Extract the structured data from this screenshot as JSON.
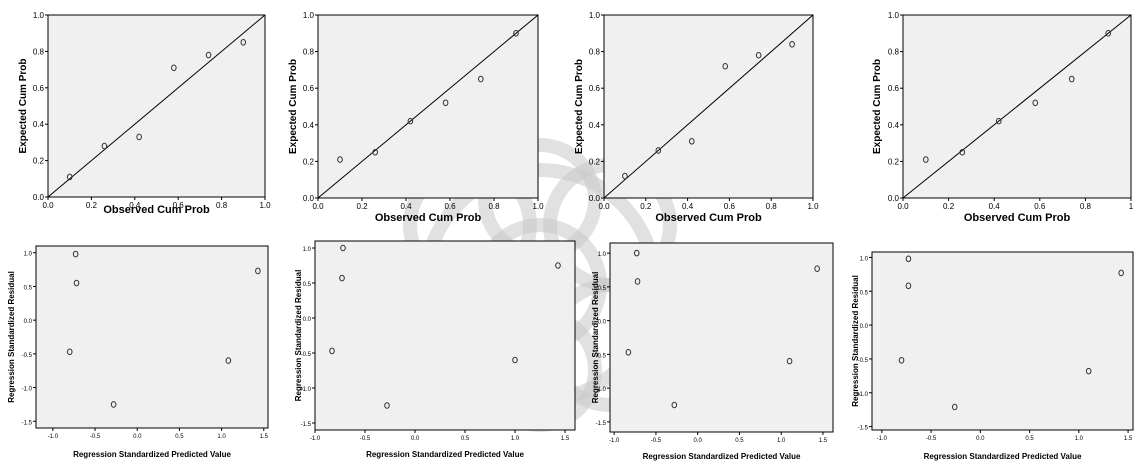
{
  "chart_data": [
    {
      "type": "scatter",
      "kind": "pp-plot",
      "xlabel": "Observed Cum Prob",
      "ylabel": "Expected Cum Prob",
      "xlim": [
        0,
        1
      ],
      "ylim": [
        0,
        1
      ],
      "xticks": [
        "0.0",
        "0.2",
        "0.4",
        "0.6",
        "0.8",
        "1.0"
      ],
      "yticks": [
        "0.0",
        "0.2",
        "0.4",
        "0.6",
        "0.8",
        "1.0"
      ],
      "reference_line": "diagonal",
      "points": [
        [
          0.1,
          0.11
        ],
        [
          0.26,
          0.28
        ],
        [
          0.42,
          0.33
        ],
        [
          0.58,
          0.71
        ],
        [
          0.74,
          0.78
        ],
        [
          0.9,
          0.85
        ]
      ]
    },
    {
      "type": "scatter",
      "kind": "pp-plot",
      "xlabel": "Observed Cum Prob",
      "ylabel": "Expected Cum Prob",
      "xlim": [
        0,
        1
      ],
      "ylim": [
        0,
        1
      ],
      "xticks": [
        "0.0",
        "0.2",
        "0.4",
        "0.6",
        "0.8",
        "1.0"
      ],
      "yticks": [
        "0.0",
        "0.2",
        "0.4",
        "0.6",
        "0.8",
        "1.0"
      ],
      "reference_line": "diagonal",
      "points": [
        [
          0.1,
          0.21
        ],
        [
          0.26,
          0.25
        ],
        [
          0.42,
          0.42
        ],
        [
          0.58,
          0.52
        ],
        [
          0.74,
          0.65
        ],
        [
          0.9,
          0.9
        ]
      ]
    },
    {
      "type": "scatter",
      "kind": "pp-plot",
      "xlabel": "Observed Cum Prob",
      "ylabel": "Expected Cum Prob",
      "xlim": [
        0,
        1
      ],
      "ylim": [
        0,
        1
      ],
      "xticks": [
        "0.0",
        "0.2",
        "0.4",
        "0.6",
        "0.8",
        "1.0"
      ],
      "yticks": [
        "0.0",
        "0.2",
        "0.4",
        "0.6",
        "0.8",
        "1.0"
      ],
      "reference_line": "diagonal",
      "points": [
        [
          0.1,
          0.12
        ],
        [
          0.26,
          0.26
        ],
        [
          0.42,
          0.31
        ],
        [
          0.58,
          0.72
        ],
        [
          0.74,
          0.78
        ],
        [
          0.9,
          0.84
        ]
      ]
    },
    {
      "type": "scatter",
      "kind": "pp-plot",
      "xlabel": "Observed Cum Prob",
      "ylabel": "Expected Cum Prob",
      "xlim": [
        0,
        1
      ],
      "ylim": [
        0,
        1
      ],
      "xticks": [
        "0.0",
        "0.2",
        "0.4",
        "0.6",
        "0.8",
        "1"
      ],
      "yticks": [
        "0.0",
        "0.2",
        "0.4",
        "0.6",
        "0.8",
        "1.0"
      ],
      "reference_line": "diagonal",
      "points": [
        [
          0.1,
          0.21
        ],
        [
          0.26,
          0.25
        ],
        [
          0.42,
          0.42
        ],
        [
          0.58,
          0.52
        ],
        [
          0.74,
          0.65
        ],
        [
          0.9,
          0.9
        ]
      ]
    },
    {
      "type": "scatter",
      "kind": "residual-plot",
      "xlabel": "Regression Standardized Predicted Value",
      "ylabel": "Regression Standardized Residual",
      "xlim": [
        -1.2,
        1.55
      ],
      "ylim": [
        -1.6,
        1.1
      ],
      "xticks": [
        "-1.0",
        "-0.5",
        "0.0",
        "0.5",
        "1.0",
        "1.5"
      ],
      "yticks": [
        "1.0",
        "0.5",
        "0.0",
        "-0.5",
        "-1.0",
        "-1.5"
      ],
      "points": [
        [
          -0.73,
          0.98
        ],
        [
          -0.72,
          0.55
        ],
        [
          -0.8,
          -0.47
        ],
        [
          -0.28,
          -1.25
        ],
        [
          1.08,
          -0.6
        ],
        [
          1.43,
          0.73
        ]
      ]
    },
    {
      "type": "scatter",
      "kind": "residual-plot",
      "xlabel": "Regression Standardized Predicted Value",
      "ylabel": "Regression Standardized Residual",
      "xlim": [
        -1.0,
        1.6
      ],
      "ylim": [
        -1.6,
        1.1
      ],
      "xticks": [
        "-1.0",
        "-0.5",
        "0.0",
        "0.5",
        "1.0",
        "1.5"
      ],
      "yticks": [
        "1.0",
        "0.5",
        "0.0",
        "-0.5",
        "-1.0",
        "-1.5"
      ],
      "points": [
        [
          -0.72,
          1.0
        ],
        [
          -0.73,
          0.57
        ],
        [
          -0.83,
          -0.47
        ],
        [
          -0.28,
          -1.25
        ],
        [
          1.0,
          -0.6
        ],
        [
          1.43,
          0.75
        ]
      ]
    },
    {
      "type": "scatter",
      "kind": "residual-plot",
      "xlabel": "Regression Standardized Predicted Value",
      "ylabel": "Regression Standardized Residual",
      "xlim": [
        -1.05,
        1.62
      ],
      "ylim": [
        -1.65,
        1.15
      ],
      "xticks": [
        "-1.0",
        "-0.5",
        "0.0",
        "0.5",
        "1.0",
        "1.5"
      ],
      "yticks": [
        "1.0",
        "0.5",
        "0.0",
        "-0.5",
        "-1.0",
        "-1.5"
      ],
      "points": [
        [
          -0.73,
          1.0
        ],
        [
          -0.72,
          0.58
        ],
        [
          -0.83,
          -0.47
        ],
        [
          -0.28,
          -1.25
        ],
        [
          1.1,
          -0.6
        ],
        [
          1.43,
          0.77
        ]
      ]
    },
    {
      "type": "scatter",
      "kind": "residual-plot",
      "xlabel": "Regression Standardized Predicted Value",
      "ylabel": "Regression Standardized Residual",
      "xlim": [
        -1.1,
        1.55
      ],
      "ylim": [
        -1.55,
        1.08
      ],
      "xticks": [
        "-1.0",
        "-0.5",
        "0.0",
        "0.5",
        "1.0",
        "1.5"
      ],
      "yticks": [
        "1.0",
        "0.5",
        "0.0",
        "-0.5",
        "-1.0",
        "-1.5"
      ],
      "points": [
        [
          -0.73,
          0.98
        ],
        [
          -0.73,
          0.58
        ],
        [
          -0.8,
          -0.52
        ],
        [
          -0.26,
          -1.21
        ],
        [
          1.1,
          -0.68
        ],
        [
          1.43,
          0.77
        ]
      ]
    }
  ]
}
